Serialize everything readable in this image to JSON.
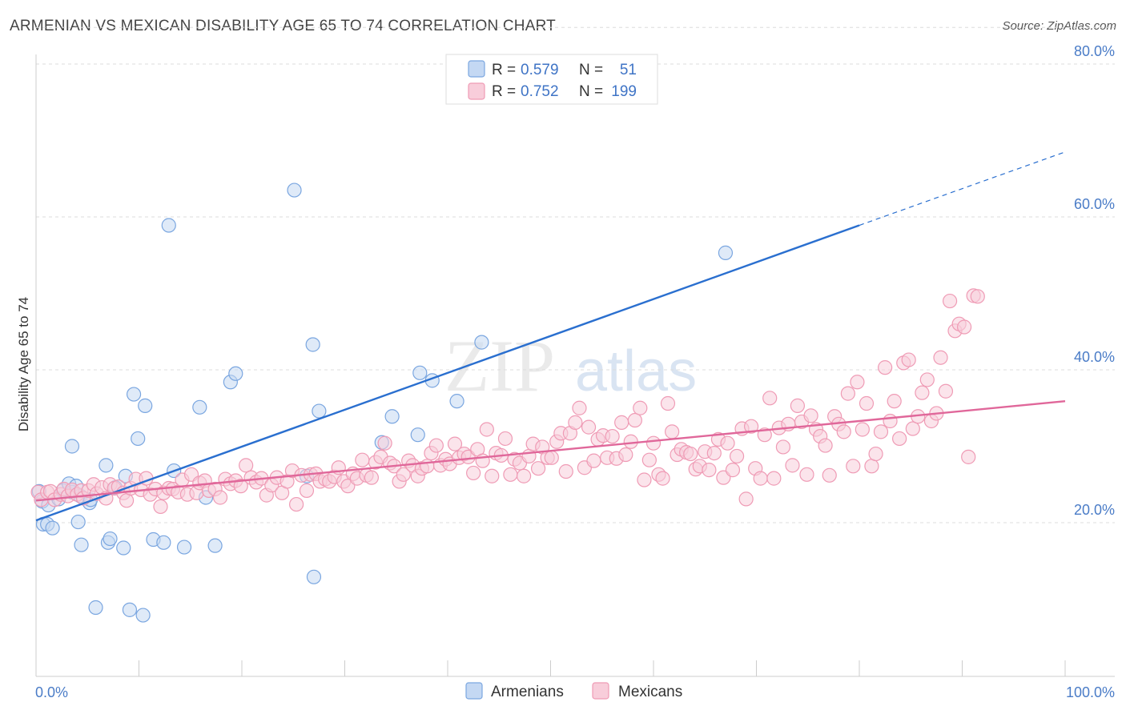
{
  "title": "ARMENIAN VS MEXICAN DISABILITY AGE 65 TO 74 CORRELATION CHART",
  "source": "Source: ZipAtlas.com",
  "watermark": {
    "zip": "ZIP",
    "atlas": "atlas"
  },
  "chart_data": {
    "type": "scatter",
    "ylabel": "Disability Age 65 to 74",
    "xlim": [
      0,
      100
    ],
    "ylim": [
      0,
      85
    ],
    "x_tick_labels": {
      "left": "0.0%",
      "right": "100.0%"
    },
    "y_ticks": [
      {
        "value": 20,
        "label": "20.0%"
      },
      {
        "value": 40,
        "label": "40.0%"
      },
      {
        "value": 60,
        "label": "60.0%"
      },
      {
        "value": 80,
        "label": "80.0%"
      }
    ],
    "grid": "horizontal dashed",
    "legend_position": "top-center",
    "series": [
      {
        "name": "Armenians",
        "color": "#7aa6e0",
        "fill": "#c4d8f3",
        "line_color": "#2a6fcf",
        "r_label": "R =",
        "r_value": "0.579",
        "n_label": "N =",
        "n_value": "51",
        "trend": {
          "x0": 0,
          "y0": 20.3,
          "x1": 80,
          "y1": 58.9,
          "dash_x1": 100,
          "dash_y1": 68.5
        },
        "points": [
          [
            0.3,
            24.1
          ],
          [
            0.6,
            22.8
          ],
          [
            0.7,
            19.8
          ],
          [
            1.1,
            19.8
          ],
          [
            1.2,
            22.3
          ],
          [
            1.6,
            19.3
          ],
          [
            2.2,
            23.1
          ],
          [
            2.6,
            24.2
          ],
          [
            3.2,
            25.1
          ],
          [
            3.5,
            24.0
          ],
          [
            3.5,
            30.0
          ],
          [
            3.9,
            24.8
          ],
          [
            4.1,
            20.1
          ],
          [
            4.3,
            23.5
          ],
          [
            4.4,
            17.1
          ],
          [
            5.2,
            22.6
          ],
          [
            5.3,
            23.0
          ],
          [
            5.8,
            8.9
          ],
          [
            6.8,
            27.5
          ],
          [
            7.0,
            17.4
          ],
          [
            7.2,
            17.9
          ],
          [
            7.7,
            24.6
          ],
          [
            8.5,
            16.7
          ],
          [
            8.7,
            26.1
          ],
          [
            9.1,
            8.6
          ],
          [
            9.5,
            36.8
          ],
          [
            9.9,
            31.0
          ],
          [
            10.4,
            7.9
          ],
          [
            10.6,
            35.3
          ],
          [
            11.4,
            17.8
          ],
          [
            12.4,
            17.4
          ],
          [
            12.9,
            58.9
          ],
          [
            13.4,
            26.8
          ],
          [
            14.4,
            16.8
          ],
          [
            15.9,
            35.1
          ],
          [
            16.5,
            23.3
          ],
          [
            17.4,
            17.0
          ],
          [
            18.9,
            38.4
          ],
          [
            19.4,
            39.5
          ],
          [
            25.1,
            63.5
          ],
          [
            26.3,
            26.1
          ],
          [
            26.9,
            43.3
          ],
          [
            27.0,
            12.9
          ],
          [
            27.5,
            34.6
          ],
          [
            33.6,
            30.5
          ],
          [
            34.6,
            33.9
          ],
          [
            37.1,
            31.5
          ],
          [
            37.3,
            39.6
          ],
          [
            38.5,
            38.6
          ],
          [
            40.9,
            35.9
          ],
          [
            43.3,
            43.6
          ],
          [
            67.0,
            55.3
          ]
        ]
      },
      {
        "name": "Mexicans",
        "color": "#ef9bb5",
        "fill": "#f8cdda",
        "line_color": "#e0679a",
        "r_label": "R =",
        "r_value": "0.752",
        "n_label": "N =",
        "n_value": "199",
        "trend": {
          "x0": 0,
          "y0": 22.9,
          "x1": 100,
          "y1": 35.9
        },
        "points": [
          [
            0.2,
            24.0
          ],
          [
            0.5,
            23.0
          ],
          [
            1.1,
            24.0
          ],
          [
            1.4,
            24.1
          ],
          [
            1.8,
            23.0
          ],
          [
            2.4,
            23.7
          ],
          [
            2.7,
            24.4
          ],
          [
            3.1,
            23.5
          ],
          [
            3.5,
            24.3
          ],
          [
            4.0,
            23.7
          ],
          [
            4.4,
            24.2
          ],
          [
            4.6,
            23.2
          ],
          [
            5.1,
            24.2
          ],
          [
            5.6,
            25.0
          ],
          [
            5.9,
            23.8
          ],
          [
            6.4,
            24.6
          ],
          [
            6.8,
            23.2
          ],
          [
            7.2,
            25.0
          ],
          [
            7.6,
            24.5
          ],
          [
            8.0,
            24.7
          ],
          [
            8.5,
            23.9
          ],
          [
            8.8,
            22.9
          ],
          [
            9.2,
            24.5
          ],
          [
            9.7,
            25.7
          ],
          [
            10.2,
            24.3
          ],
          [
            10.7,
            25.8
          ],
          [
            11.1,
            23.7
          ],
          [
            11.6,
            24.4
          ],
          [
            12.1,
            22.1
          ],
          [
            12.4,
            23.9
          ],
          [
            12.9,
            24.5
          ],
          [
            13.3,
            24.4
          ],
          [
            13.8,
            24.0
          ],
          [
            14.2,
            25.6
          ],
          [
            14.7,
            23.7
          ],
          [
            15.1,
            26.3
          ],
          [
            15.6,
            23.9
          ],
          [
            15.9,
            25.2
          ],
          [
            16.4,
            25.5
          ],
          [
            16.8,
            24.2
          ],
          [
            17.4,
            24.4
          ],
          [
            17.9,
            23.3
          ],
          [
            18.4,
            25.7
          ],
          [
            18.9,
            25.1
          ],
          [
            19.4,
            25.5
          ],
          [
            19.9,
            24.8
          ],
          [
            20.4,
            27.5
          ],
          [
            20.9,
            25.9
          ],
          [
            21.4,
            25.3
          ],
          [
            21.9,
            25.8
          ],
          [
            22.4,
            23.6
          ],
          [
            22.9,
            24.9
          ],
          [
            23.4,
            25.9
          ],
          [
            23.9,
            23.9
          ],
          [
            24.4,
            25.4
          ],
          [
            24.9,
            26.8
          ],
          [
            25.3,
            22.4
          ],
          [
            25.8,
            26.2
          ],
          [
            26.3,
            24.2
          ],
          [
            26.7,
            26.3
          ],
          [
            27.2,
            26.4
          ],
          [
            27.6,
            25.4
          ],
          [
            28.1,
            25.7
          ],
          [
            28.5,
            25.4
          ],
          [
            29.0,
            26.0
          ],
          [
            29.4,
            27.2
          ],
          [
            29.9,
            25.4
          ],
          [
            30.3,
            24.8
          ],
          [
            30.8,
            26.4
          ],
          [
            31.2,
            25.8
          ],
          [
            31.7,
            28.2
          ],
          [
            32.1,
            26.2
          ],
          [
            32.6,
            25.9
          ],
          [
            33.0,
            27.9
          ],
          [
            33.5,
            28.6
          ],
          [
            33.9,
            30.4
          ],
          [
            34.4,
            27.8
          ],
          [
            34.8,
            27.4
          ],
          [
            35.3,
            25.4
          ],
          [
            35.7,
            26.3
          ],
          [
            36.2,
            28.1
          ],
          [
            36.6,
            27.5
          ],
          [
            37.1,
            26.1
          ],
          [
            37.5,
            27.1
          ],
          [
            38.0,
            27.4
          ],
          [
            38.4,
            29.1
          ],
          [
            38.9,
            30.1
          ],
          [
            39.3,
            27.5
          ],
          [
            39.8,
            28.3
          ],
          [
            40.2,
            27.7
          ],
          [
            40.7,
            30.3
          ],
          [
            41.1,
            28.5
          ],
          [
            41.6,
            29.0
          ],
          [
            42.0,
            28.6
          ],
          [
            42.5,
            26.5
          ],
          [
            42.9,
            29.6
          ],
          [
            43.4,
            28.1
          ],
          [
            43.8,
            32.2
          ],
          [
            44.3,
            26.1
          ],
          [
            44.7,
            29.1
          ],
          [
            45.2,
            28.8
          ],
          [
            45.6,
            31.0
          ],
          [
            46.1,
            26.3
          ],
          [
            46.5,
            28.3
          ],
          [
            47.0,
            27.8
          ],
          [
            47.4,
            26.1
          ],
          [
            47.9,
            28.7
          ],
          [
            48.3,
            30.3
          ],
          [
            48.8,
            27.1
          ],
          [
            49.2,
            29.9
          ],
          [
            49.7,
            28.5
          ],
          [
            50.1,
            28.5
          ],
          [
            50.6,
            30.6
          ],
          [
            51.0,
            31.7
          ],
          [
            51.5,
            26.7
          ],
          [
            51.9,
            31.7
          ],
          [
            52.4,
            33.1
          ],
          [
            52.8,
            35.0
          ],
          [
            53.3,
            27.2
          ],
          [
            53.7,
            32.5
          ],
          [
            54.2,
            28.1
          ],
          [
            54.6,
            30.9
          ],
          [
            55.1,
            31.4
          ],
          [
            55.5,
            28.5
          ],
          [
            56.0,
            31.3
          ],
          [
            56.4,
            28.4
          ],
          [
            56.9,
            33.1
          ],
          [
            57.3,
            28.9
          ],
          [
            57.8,
            30.6
          ],
          [
            58.2,
            33.4
          ],
          [
            58.7,
            35.0
          ],
          [
            59.1,
            25.6
          ],
          [
            59.6,
            28.2
          ],
          [
            60.0,
            30.4
          ],
          [
            60.5,
            26.3
          ],
          [
            60.9,
            25.8
          ],
          [
            61.4,
            35.6
          ],
          [
            61.8,
            31.9
          ],
          [
            62.3,
            28.9
          ],
          [
            62.7,
            29.6
          ],
          [
            63.2,
            29.2
          ],
          [
            63.6,
            29.0
          ],
          [
            64.1,
            27.0
          ],
          [
            64.5,
            27.4
          ],
          [
            65.0,
            29.3
          ],
          [
            65.4,
            26.9
          ],
          [
            65.9,
            29.1
          ],
          [
            66.3,
            30.9
          ],
          [
            66.8,
            25.9
          ],
          [
            67.2,
            30.4
          ],
          [
            67.7,
            26.9
          ],
          [
            68.1,
            28.7
          ],
          [
            68.6,
            32.3
          ],
          [
            69.0,
            23.1
          ],
          [
            69.5,
            32.6
          ],
          [
            69.9,
            27.1
          ],
          [
            70.4,
            25.8
          ],
          [
            70.8,
            31.5
          ],
          [
            71.3,
            36.3
          ],
          [
            71.7,
            25.8
          ],
          [
            72.2,
            32.4
          ],
          [
            72.6,
            29.9
          ],
          [
            73.1,
            32.9
          ],
          [
            73.5,
            27.5
          ],
          [
            74.0,
            35.3
          ],
          [
            74.4,
            33.2
          ],
          [
            74.9,
            26.3
          ],
          [
            75.3,
            34.0
          ],
          [
            75.8,
            32.2
          ],
          [
            76.2,
            31.3
          ],
          [
            76.7,
            30.1
          ],
          [
            77.1,
            26.2
          ],
          [
            77.6,
            33.9
          ],
          [
            78.0,
            32.9
          ],
          [
            78.5,
            31.9
          ],
          [
            78.9,
            36.9
          ],
          [
            79.4,
            27.4
          ],
          [
            79.8,
            38.4
          ],
          [
            80.3,
            32.2
          ],
          [
            80.7,
            35.6
          ],
          [
            81.2,
            27.4
          ],
          [
            81.6,
            29.0
          ],
          [
            82.1,
            31.9
          ],
          [
            82.5,
            40.3
          ],
          [
            83.0,
            33.3
          ],
          [
            83.4,
            35.9
          ],
          [
            83.9,
            31.0
          ],
          [
            84.3,
            40.9
          ],
          [
            84.8,
            41.3
          ],
          [
            85.2,
            32.3
          ],
          [
            85.7,
            33.9
          ],
          [
            86.1,
            37.0
          ],
          [
            86.6,
            38.7
          ],
          [
            87.0,
            33.3
          ],
          [
            87.5,
            34.3
          ],
          [
            87.9,
            41.6
          ],
          [
            88.4,
            37.2
          ],
          [
            88.8,
            49.0
          ],
          [
            89.3,
            45.1
          ],
          [
            89.7,
            46.0
          ],
          [
            90.2,
            45.6
          ],
          [
            90.6,
            28.6
          ],
          [
            91.1,
            49.7
          ],
          [
            91.5,
            49.6
          ]
        ]
      }
    ]
  }
}
